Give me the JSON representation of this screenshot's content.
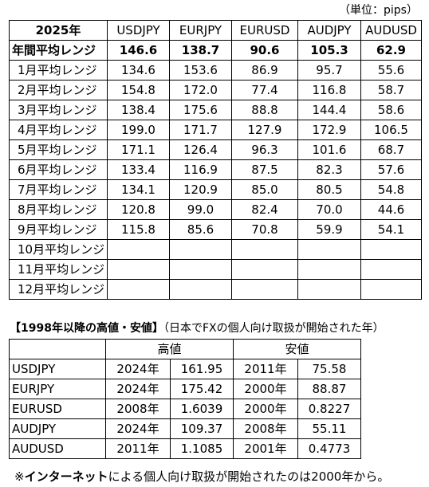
{
  "unit_label": "（単位：pips）",
  "range_table": {
    "corner_label": "2025年",
    "columns": [
      "USDJPY",
      "EURJPY",
      "EURUSD",
      "AUDJPY",
      "AUDUSD"
    ],
    "annual_label": "年間平均レンジ",
    "annual_values": [
      "146.6",
      "138.7",
      "90.6",
      "105.3",
      "62.9"
    ],
    "rows": [
      {
        "label": "1月平均レンジ",
        "values": [
          "134.6",
          "153.6",
          "86.9",
          "95.7",
          "55.6"
        ]
      },
      {
        "label": "2月平均レンジ",
        "values": [
          "154.8",
          "172.0",
          "77.4",
          "116.8",
          "58.7"
        ]
      },
      {
        "label": "3月平均レンジ",
        "values": [
          "138.4",
          "175.6",
          "88.8",
          "144.4",
          "58.6"
        ]
      },
      {
        "label": "4月平均レンジ",
        "values": [
          "199.0",
          "171.7",
          "127.9",
          "172.9",
          "106.5"
        ]
      },
      {
        "label": "5月平均レンジ",
        "values": [
          "171.1",
          "126.4",
          "96.3",
          "101.6",
          "68.7"
        ]
      },
      {
        "label": "6月平均レンジ",
        "values": [
          "133.4",
          "116.9",
          "87.5",
          "82.3",
          "57.6"
        ]
      },
      {
        "label": "7月平均レンジ",
        "values": [
          "134.1",
          "120.9",
          "85.0",
          "80.5",
          "54.8"
        ]
      },
      {
        "label": "8月平均レンジ",
        "values": [
          "120.8",
          "99.0",
          "82.4",
          "70.0",
          "44.6"
        ]
      },
      {
        "label": "9月平均レンジ",
        "values": [
          "115.8",
          "85.6",
          "70.8",
          "59.9",
          "54.1"
        ]
      },
      {
        "label": "10月平均レンジ",
        "values": [
          "",
          "",
          "",
          "",
          ""
        ]
      },
      {
        "label": "11月平均レンジ",
        "values": [
          "",
          "",
          "",
          "",
          ""
        ]
      },
      {
        "label": "12月平均レンジ",
        "values": [
          "",
          "",
          "",
          "",
          ""
        ]
      }
    ]
  },
  "history": {
    "heading_bold": "【1998年以降の高値・安値】",
    "heading_note": "（日本でFXの個人向け取扱が開始された年）",
    "high_label": "高値",
    "low_label": "安値",
    "rows": [
      {
        "pair": "USDJPY",
        "high_year": "2024年",
        "high_value": "161.95",
        "low_year": "2011年",
        "low_value": "75.58"
      },
      {
        "pair": "EURJPY",
        "high_year": "2024年",
        "high_value": "175.42",
        "low_year": "2000年",
        "low_value": "88.87"
      },
      {
        "pair": "EURUSD",
        "high_year": "2008年",
        "high_value": "1.6039",
        "low_year": "2000年",
        "low_value": "0.8227"
      },
      {
        "pair": "AUDJPY",
        "high_year": "2024年",
        "high_value": "109.37",
        "low_year": "2008年",
        "low_value": "55.11"
      },
      {
        "pair": "AUDUSD",
        "high_year": "2011年",
        "high_value": "1.1085",
        "low_year": "2001年",
        "low_value": "0.4773"
      }
    ]
  },
  "footnote": {
    "prefix": "※",
    "bold": "インターネット",
    "rest": "による個人向け取扱が開始されたのは2000年から。"
  }
}
